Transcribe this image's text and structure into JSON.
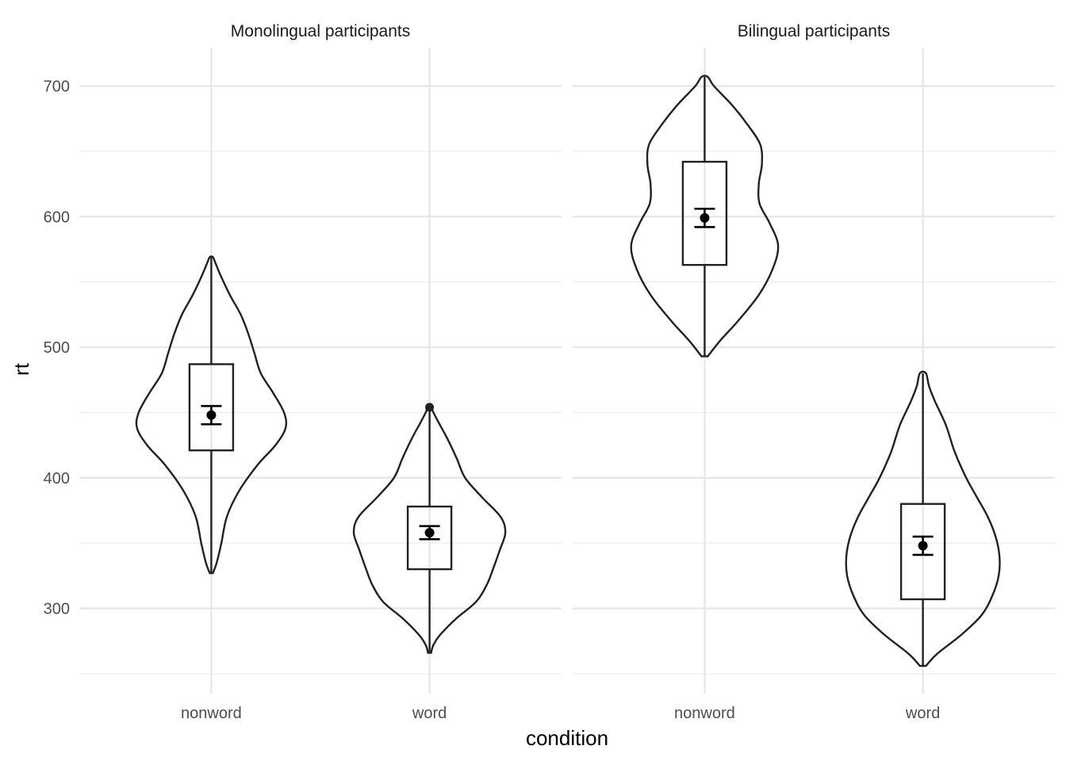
{
  "chart_data": {
    "type": "violin",
    "xlabel": "condition",
    "ylabel": "rt",
    "categories": [
      "nonword",
      "word"
    ],
    "y_ticks": [
      300,
      400,
      500,
      600,
      700
    ],
    "ylim": [
      234,
      730
    ],
    "grid": true,
    "legend": "none",
    "facets": [
      {
        "title": "Monolingual participants",
        "groups": [
          {
            "condition": "nonword",
            "violin_range": [
              327,
              569
            ],
            "box": {
              "q1": 421,
              "median": 487,
              "q3": 487,
              "whisker_low": 327,
              "whisker_high": 569
            },
            "mean": 448,
            "ci": [
              441,
              455
            ],
            "outliers": [],
            "density": [
              [
                327,
                0.02
              ],
              [
                335,
                0.07
              ],
              [
                350,
                0.13
              ],
              [
                370,
                0.2
              ],
              [
                390,
                0.36
              ],
              [
                410,
                0.6
              ],
              [
                425,
                0.83
              ],
              [
                438,
                0.96
              ],
              [
                450,
                0.94
              ],
              [
                465,
                0.8
              ],
              [
                480,
                0.64
              ],
              [
                495,
                0.56
              ],
              [
                510,
                0.48
              ],
              [
                525,
                0.38
              ],
              [
                540,
                0.24
              ],
              [
                555,
                0.12
              ],
              [
                565,
                0.05
              ],
              [
                569,
                0.02
              ]
            ]
          },
          {
            "condition": "word",
            "violin_range": [
              266,
              454
            ],
            "box": {
              "q1": 330,
              "median": 378,
              "q3": 378,
              "whisker_low": 266,
              "whisker_high": 454
            },
            "mean": 358,
            "ci": [
              353,
              363
            ],
            "outliers": [
              454
            ],
            "density": [
              [
                266,
                0.02
              ],
              [
                272,
                0.05
              ],
              [
                280,
                0.14
              ],
              [
                292,
                0.34
              ],
              [
                305,
                0.6
              ],
              [
                318,
                0.74
              ],
              [
                330,
                0.82
              ],
              [
                345,
                0.91
              ],
              [
                358,
                0.98
              ],
              [
                370,
                0.92
              ],
              [
                385,
                0.68
              ],
              [
                400,
                0.46
              ],
              [
                415,
                0.35
              ],
              [
                430,
                0.23
              ],
              [
                442,
                0.12
              ],
              [
                450,
                0.05
              ],
              [
                454,
                0.02
              ]
            ]
          }
        ]
      },
      {
        "title": "Bilingual participants",
        "groups": [
          {
            "condition": "nonword",
            "violin_range": [
              493,
              707
            ],
            "box": {
              "q1": 563,
              "median": 642,
              "q3": 642,
              "whisker_low": 493,
              "whisker_high": 707
            },
            "mean": 599,
            "ci": [
              592,
              606
            ],
            "outliers": [],
            "density": [
              [
                493,
                0.04
              ],
              [
                505,
                0.2
              ],
              [
                520,
                0.43
              ],
              [
                540,
                0.7
              ],
              [
                560,
                0.88
              ],
              [
                578,
                0.95
              ],
              [
                595,
                0.84
              ],
              [
                610,
                0.71
              ],
              [
                625,
                0.7
              ],
              [
                640,
                0.74
              ],
              [
                655,
                0.72
              ],
              [
                670,
                0.56
              ],
              [
                685,
                0.36
              ],
              [
                700,
                0.12
              ],
              [
                707,
                0.04
              ]
            ]
          },
          {
            "condition": "word",
            "violin_range": [
              256,
              480
            ],
            "box": {
              "q1": 307,
              "median": 380,
              "q3": 380,
              "whisker_low": 256,
              "whisker_high": 480
            },
            "mean": 348,
            "ci": [
              341,
              355
            ],
            "outliers": [],
            "density": [
              [
                256,
                0.04
              ],
              [
                265,
                0.18
              ],
              [
                280,
                0.5
              ],
              [
                295,
                0.76
              ],
              [
                310,
                0.9
              ],
              [
                325,
                0.98
              ],
              [
                340,
                0.99
              ],
              [
                355,
                0.94
              ],
              [
                370,
                0.84
              ],
              [
                385,
                0.7
              ],
              [
                400,
                0.56
              ],
              [
                420,
                0.41
              ],
              [
                440,
                0.3
              ],
              [
                458,
                0.16
              ],
              [
                470,
                0.08
              ],
              [
                480,
                0.04
              ]
            ]
          }
        ]
      }
    ]
  }
}
